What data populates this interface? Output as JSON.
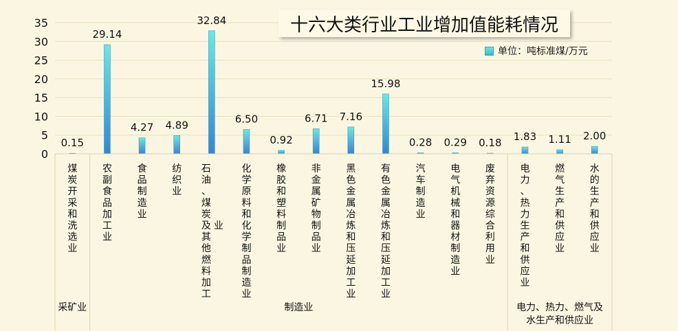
{
  "chart_data": {
    "type": "bar",
    "title": "十六大类行业工业增加值能耗情况",
    "legend": {
      "position": "top-right",
      "series_name": "单位：吨标准煤/万元"
    },
    "ylim": [
      0,
      35
    ],
    "yticks": [
      0,
      5,
      10,
      15,
      20,
      25,
      30,
      35
    ],
    "grid": true,
    "categories": [
      "煤炭开采和洗选业",
      "农副食品加工业",
      "食品制造业",
      "纺织业",
      "石油、煤炭及其他燃料加工业",
      "化学原料和化学制品制造业",
      "橡胶和塑料制品业",
      "非金属矿物制品业",
      "黑色金属冶炼和压延加工业",
      "有色金属冶炼和压延加工业",
      "汽车制造业",
      "电气机械和器材制造业",
      "废弃资源综合利用业",
      "电力、热力生产和供应业",
      "燃气生产和供应业",
      "水的生产和供应业"
    ],
    "values": [
      0.15,
      29.14,
      4.27,
      4.89,
      32.84,
      6.5,
      0.92,
      6.71,
      7.16,
      15.98,
      0.28,
      0.29,
      0.18,
      1.83,
      1.11,
      2.0
    ],
    "value_labels": [
      "0.15",
      "29.14",
      "4.27",
      "4.89",
      "32.84",
      "6.50",
      "0.92",
      "6.71",
      "7.16",
      "15.98",
      "0.28",
      "0.29",
      "0.18",
      "1.83",
      "1.11",
      "2.00"
    ],
    "category_label_columns": [
      [
        "煤炭开采和洗选业"
      ],
      [
        "农副食品加工业"
      ],
      [
        "食品制造业"
      ],
      [
        "纺织业"
      ],
      [
        "石油、煤炭及其他燃料加工",
        "业"
      ],
      [
        "化学原料和化学制品制造业"
      ],
      [
        "橡胶和塑料制品业"
      ],
      [
        "非金属矿物制品业"
      ],
      [
        "黑色金属冶炼和压延加工业"
      ],
      [
        "有色金属冶炼和压延加工业"
      ],
      [
        "汽车制造业"
      ],
      [
        "电气机械和器材制造业"
      ],
      [
        "废弃资源综合利用业"
      ],
      [
        "电力、热力生产和供应业"
      ],
      [
        "燃气生产和供应业"
      ],
      [
        "水的生产和供应业"
      ]
    ],
    "groups": [
      {
        "label_lines": [
          "采矿业"
        ],
        "start": 0,
        "end": 0
      },
      {
        "label_lines": [
          "制造业"
        ],
        "start": 1,
        "end": 12
      },
      {
        "label_lines": [
          "电力、热力、燃气及",
          "水生产和供应业"
        ],
        "start": 13,
        "end": 15
      }
    ],
    "colors": {
      "bar_top": "#6fe6e0",
      "bar_bottom": "#3a84cf",
      "bar_stroke": "#3a9fbf"
    }
  }
}
